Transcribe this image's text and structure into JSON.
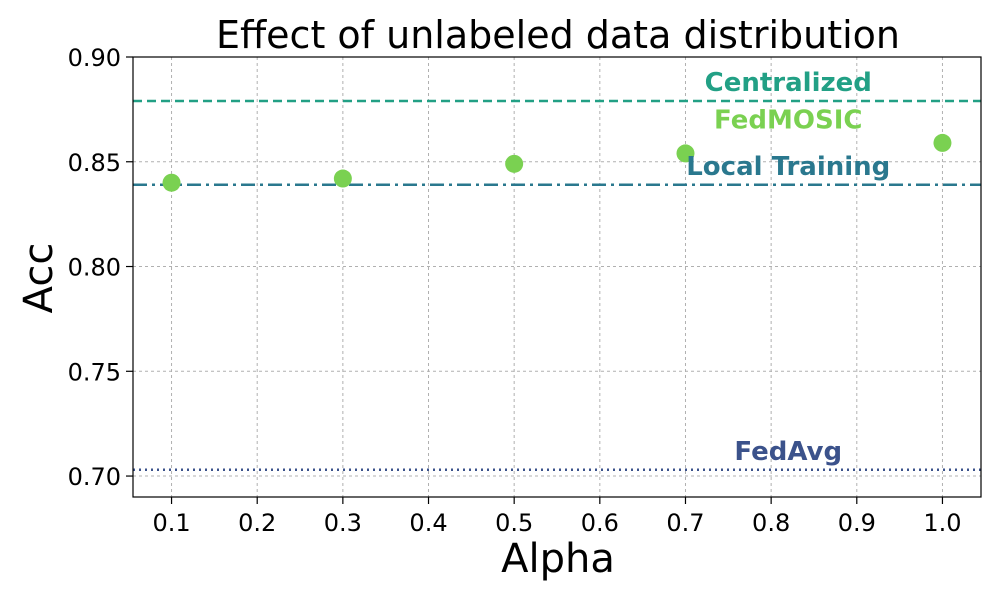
{
  "chart_data": {
    "type": "scatter",
    "title": "Effect of unlabeled data distribution",
    "xlabel": "Alpha",
    "ylabel": "Acc",
    "xlim": [
      0.055,
      1.045
    ],
    "ylim": [
      0.69,
      0.9
    ],
    "x_ticks": [
      0.1,
      0.2,
      0.3,
      0.4,
      0.5,
      0.6,
      0.7,
      0.8,
      0.9,
      1.0
    ],
    "x_tick_labels": [
      "0.1",
      "0.2",
      "0.3",
      "0.4",
      "0.5",
      "0.6",
      "0.7",
      "0.8",
      "0.9",
      "1.0"
    ],
    "y_ticks": [
      0.7,
      0.75,
      0.8,
      0.85,
      0.9
    ],
    "y_tick_labels": [
      "0.70",
      "0.75",
      "0.80",
      "0.85",
      "0.90"
    ],
    "grid": true,
    "series": [
      {
        "name": "FedMOSIC",
        "color": "#7ad151",
        "x": [
          0.1,
          0.3,
          0.5,
          0.7,
          1.0
        ],
        "y": [
          0.84,
          0.842,
          0.849,
          0.854,
          0.859
        ]
      }
    ],
    "reference_lines": [
      {
        "name": "Centralized",
        "y": 0.879,
        "style": "dashed",
        "color": "#22a085",
        "label_x": 0.82
      },
      {
        "name": "Local Training",
        "y": 0.839,
        "style": "dashdot",
        "color": "#2a788e",
        "label_x": 0.82
      },
      {
        "name": "FedAvg",
        "y": 0.703,
        "style": "dotted",
        "color": "#3b528b",
        "label_x": 0.82
      }
    ],
    "series_label": {
      "name": "FedMOSIC",
      "color": "#7ad151",
      "x": 0.82,
      "y": 0.8658
    }
  }
}
